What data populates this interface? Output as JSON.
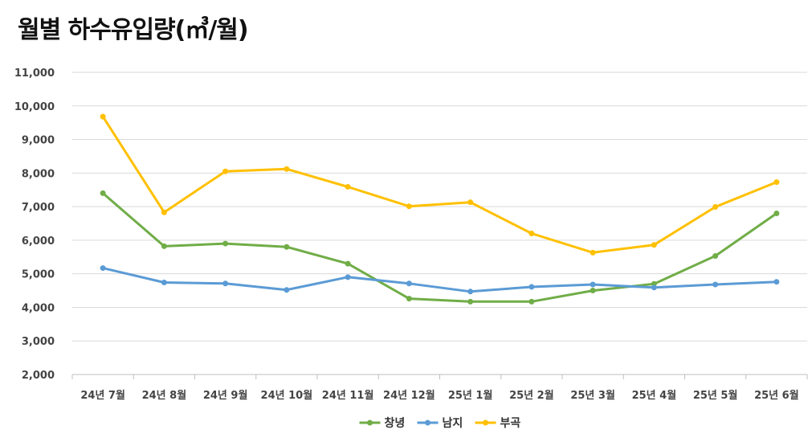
{
  "chart_data": {
    "type": "line",
    "title": "월별 하수유입량(㎥/월)",
    "categories": [
      "24년 7월",
      "24년 8월",
      "24년 9월",
      "24년 10월",
      "24년 11월",
      "24년 12월",
      "25년 1월",
      "25년 2월",
      "25년 3월",
      "25년 4월",
      "25년 5월",
      "25년 6월"
    ],
    "ylim": [
      2000,
      11000
    ],
    "yticks": [
      2000,
      3000,
      4000,
      5000,
      6000,
      7000,
      8000,
      9000,
      10000,
      11000
    ],
    "ytick_labels": [
      "2,000",
      "3,000",
      "4,000",
      "5,000",
      "6,000",
      "7,000",
      "8,000",
      "9,000",
      "10,000",
      "11,000"
    ],
    "grid": true,
    "legend_position": "bottom",
    "series": [
      {
        "name": "창녕",
        "color": "#70ad47",
        "values": [
          7400,
          5820,
          5900,
          5800,
          5300,
          4260,
          4170,
          4170,
          4500,
          4700,
          5530,
          6800
        ]
      },
      {
        "name": "남지",
        "color": "#5b9bd5",
        "values": [
          5170,
          4740,
          4710,
          4520,
          4900,
          4710,
          4470,
          4610,
          4680,
          4590,
          4680,
          4760
        ]
      },
      {
        "name": "부곡",
        "color": "#ffc000",
        "values": [
          9680,
          6830,
          8050,
          8120,
          7590,
          7010,
          7130,
          6200,
          5630,
          5860,
          6990,
          7730
        ]
      }
    ]
  }
}
